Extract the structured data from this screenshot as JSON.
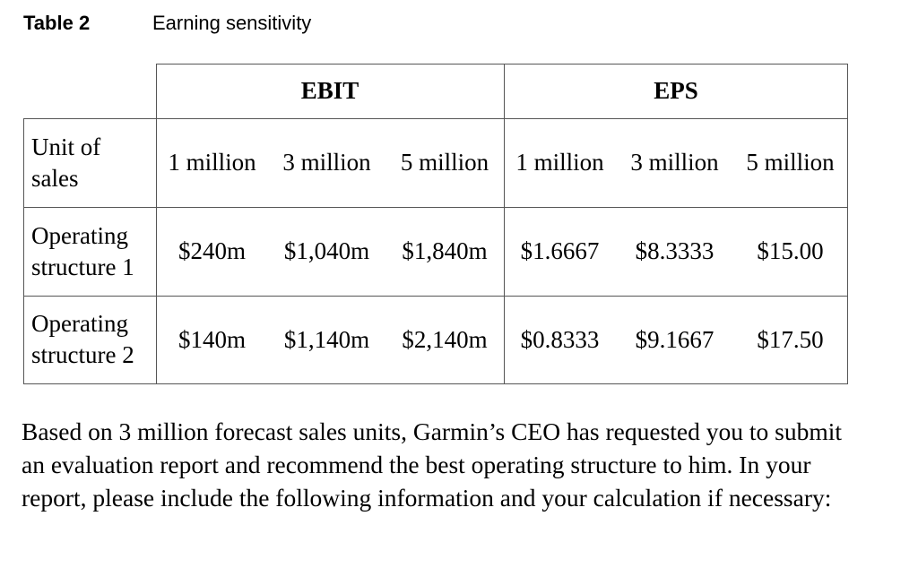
{
  "caption": {
    "label": "Table 2",
    "title": "Earning sensitivity"
  },
  "table": {
    "groups": [
      "EBIT",
      "EPS"
    ],
    "units_label": "Unit of sales",
    "units": [
      "1 million",
      "3 million",
      "5 million",
      "1 million",
      "3 million",
      "5 million"
    ],
    "rows": [
      {
        "label": "Operating structure 1",
        "values": [
          "$240m",
          "$1,040m",
          "$1,840m",
          "$1.6667",
          "$8.3333",
          "$15.00"
        ]
      },
      {
        "label": "Operating structure 2",
        "values": [
          "$140m",
          "$1,140m",
          "$2,140m",
          "$0.8333",
          "$9.1667",
          "$17.50"
        ]
      }
    ]
  },
  "paragraph": "Based on 3 million forecast sales units, Garmin’s CEO has requested you to submit an evaluation report and recommend the best operating structure to him. In your report, please include the following information and your calculation if necessary:"
}
